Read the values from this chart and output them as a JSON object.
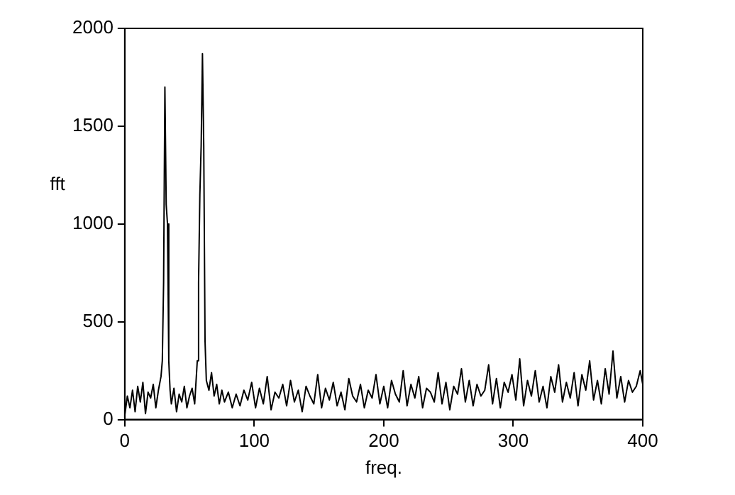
{
  "chart_data": {
    "type": "line",
    "xlabel": "freq.",
    "ylabel": "fft",
    "series": [
      {
        "color": "#000000",
        "x": [
          0,
          2,
          4,
          6,
          8,
          10,
          12,
          14,
          16,
          18,
          20,
          22,
          24,
          26,
          28,
          29,
          30,
          31,
          32,
          33,
          34,
          35,
          36,
          38,
          40,
          42,
          44,
          46,
          48,
          50,
          52,
          54,
          56,
          57,
          58,
          59,
          60,
          61,
          62,
          63,
          65,
          67,
          69,
          71,
          73,
          75,
          77,
          80,
          83,
          86,
          89,
          92,
          95,
          98,
          101,
          104,
          107,
          110,
          113,
          116,
          119,
          122,
          125,
          128,
          131,
          134,
          137,
          140,
          143,
          146,
          149,
          152,
          155,
          158,
          161,
          164,
          167,
          170,
          173,
          176,
          179,
          182,
          185,
          188,
          191,
          194,
          197,
          200,
          203,
          206,
          209,
          212,
          215,
          218,
          221,
          224,
          227,
          230,
          233,
          236,
          239,
          242,
          245,
          248,
          251,
          254,
          257,
          260,
          263,
          266,
          269,
          272,
          275,
          278,
          281,
          284,
          287,
          290,
          293,
          296,
          299,
          302,
          305,
          308,
          311,
          314,
          317,
          320,
          323,
          326,
          329,
          332,
          335,
          338,
          341,
          344,
          347,
          350,
          353,
          356,
          359,
          362,
          365,
          368,
          371,
          374,
          377,
          380,
          383,
          386,
          389,
          392,
          395,
          398,
          400
        ],
        "values": [
          20,
          120,
          60,
          150,
          40,
          170,
          90,
          190,
          30,
          140,
          110,
          180,
          60,
          150,
          220,
          300,
          700,
          1700,
          1100,
          1000,
          300,
          150,
          80,
          160,
          40,
          130,
          90,
          170,
          60,
          120,
          160,
          80,
          300,
          700,
          1150,
          1400,
          1870,
          1400,
          400,
          200,
          150,
          240,
          120,
          180,
          80,
          150,
          90,
          140,
          60,
          130,
          70,
          150,
          100,
          190,
          60,
          160,
          80,
          220,
          50,
          140,
          110,
          180,
          70,
          200,
          90,
          150,
          40,
          170,
          120,
          80,
          230,
          60,
          160,
          100,
          190,
          70,
          140,
          50,
          210,
          120,
          90,
          180,
          60,
          150,
          110,
          230,
          80,
          170,
          60,
          200,
          130,
          90,
          250,
          70,
          180,
          110,
          220,
          60,
          160,
          140,
          90,
          240,
          80,
          190,
          50,
          170,
          130,
          260,
          90,
          200,
          70,
          180,
          120,
          150,
          280,
          80,
          210,
          60,
          190,
          140,
          230,
          100,
          310,
          70,
          200,
          120,
          250,
          90,
          170,
          60,
          220,
          140,
          280,
          90,
          190,
          110,
          240,
          70,
          230,
          150,
          300,
          100,
          200,
          80,
          260,
          130,
          350,
          110,
          220,
          90,
          200,
          140,
          170,
          250,
          180
        ]
      }
    ],
    "xlim": [
      0,
      400
    ],
    "xticks": [
      0,
      100,
      200,
      300,
      400
    ],
    "ylim": [
      0,
      2000
    ],
    "yticks": [
      0,
      500,
      1000,
      1500,
      2000
    ],
    "grid": false,
    "legend": false,
    "marker": "none",
    "line_style": "solid"
  }
}
